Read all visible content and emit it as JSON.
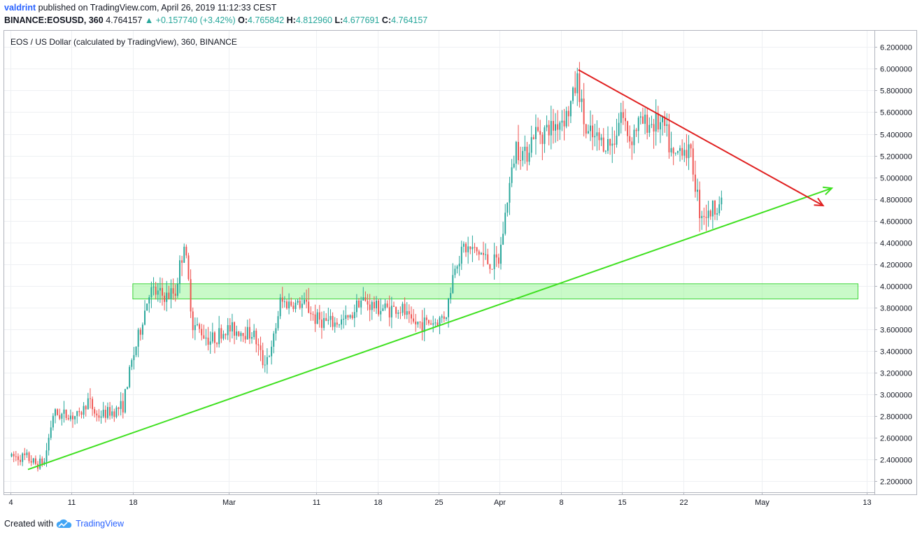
{
  "header": {
    "author": "valdrint",
    "published_text": "published on TradingView.com, April 26, 2019 11:12:33 CEST",
    "symbol_line": "BINANCE:EOSUSD, 360",
    "last_price": "4.764157",
    "change_arrow": "▲",
    "change": "+0.157740 (+3.42%)",
    "o_label": "O:",
    "o_value": "4.765842",
    "h_label": "H:",
    "h_value": "4.812960",
    "l_label": "L:",
    "l_value": "4.677691",
    "c_label": "C:",
    "c_value": "4.764157"
  },
  "footer": {
    "created_with": "Created with",
    "brand": "TradingView"
  },
  "colors": {
    "up": "#26a69a",
    "down": "#ef5350",
    "support_line": "#3fe020",
    "resistance_line": "#e02020",
    "zone_fill": "#9cf59a",
    "zone_stroke": "#3fd63a",
    "grid": "#eef0f3"
  },
  "chart_data": {
    "type": "candlestick",
    "legend": "EOS / US Dollar (calculated by TradingView), 360, BINANCE",
    "ylim": [
      2.1,
      6.35
    ],
    "y_ticks": [
      "2.200000",
      "2.400000",
      "2.600000",
      "2.800000",
      "3.000000",
      "3.200000",
      "3.400000",
      "3.600000",
      "3.800000",
      "4.000000",
      "4.200000",
      "4.400000",
      "4.600000",
      "4.800000",
      "5.000000",
      "5.200000",
      "5.400000",
      "5.600000",
      "5.800000",
      "6.000000",
      "6.200000"
    ],
    "x_range": [
      "2019-02-04",
      "2019-05-13"
    ],
    "x_ticks": [
      {
        "date": "2019-02-04",
        "label": "4"
      },
      {
        "date": "2019-02-11",
        "label": "11"
      },
      {
        "date": "2019-02-18",
        "label": "18"
      },
      {
        "date": "2019-03-01",
        "label": "Mar"
      },
      {
        "date": "2019-03-11",
        "label": "11"
      },
      {
        "date": "2019-03-18",
        "label": "18"
      },
      {
        "date": "2019-03-25",
        "label": "25"
      },
      {
        "date": "2019-04-01",
        "label": "Apr"
      },
      {
        "date": "2019-04-08",
        "label": "8"
      },
      {
        "date": "2019-04-15",
        "label": "15"
      },
      {
        "date": "2019-04-22",
        "label": "22"
      },
      {
        "date": "2019-05-01",
        "label": "May"
      },
      {
        "date": "2019-05-13",
        "label": "13"
      }
    ],
    "price_path": [
      [
        "2019-02-04",
        2.43
      ],
      [
        "2019-02-06",
        2.42
      ],
      [
        "2019-02-07",
        2.36
      ],
      [
        "2019-02-08",
        2.38
      ],
      [
        "2019-02-09",
        2.82
      ],
      [
        "2019-02-12",
        2.8
      ],
      [
        "2019-02-13",
        2.95
      ],
      [
        "2019-02-14",
        2.8
      ],
      [
        "2019-02-16",
        2.85
      ],
      [
        "2019-02-17",
        2.9
      ],
      [
        "2019-02-18",
        3.3
      ],
      [
        "2019-02-19",
        3.6
      ],
      [
        "2019-02-20",
        3.95
      ],
      [
        "2019-02-22",
        3.9
      ],
      [
        "2019-02-23",
        3.95
      ],
      [
        "2019-02-24",
        4.4
      ],
      [
        "2019-02-25",
        3.65
      ],
      [
        "2019-02-27",
        3.5
      ],
      [
        "2019-03-01",
        3.6
      ],
      [
        "2019-03-03",
        3.58
      ],
      [
        "2019-03-04",
        3.55
      ],
      [
        "2019-03-05",
        3.3
      ],
      [
        "2019-03-06",
        3.4
      ],
      [
        "2019-03-07",
        3.85
      ],
      [
        "2019-03-10",
        3.82
      ],
      [
        "2019-03-11",
        3.7
      ],
      [
        "2019-03-13",
        3.65
      ],
      [
        "2019-03-15",
        3.7
      ],
      [
        "2019-03-16",
        3.88
      ],
      [
        "2019-03-18",
        3.8
      ],
      [
        "2019-03-21",
        3.78
      ],
      [
        "2019-03-22",
        3.65
      ],
      [
        "2019-03-25",
        3.67
      ],
      [
        "2019-03-26",
        3.75
      ],
      [
        "2019-03-27",
        4.2
      ],
      [
        "2019-03-28",
        4.35
      ],
      [
        "2019-03-30",
        4.3
      ],
      [
        "2019-03-31",
        4.2
      ],
      [
        "2019-04-01",
        4.22
      ],
      [
        "2019-04-02",
        4.8
      ],
      [
        "2019-04-03",
        5.3
      ],
      [
        "2019-04-04",
        5.2
      ],
      [
        "2019-04-05",
        5.4
      ],
      [
        "2019-04-07",
        5.45
      ],
      [
        "2019-04-09",
        5.6
      ],
      [
        "2019-04-10",
        5.9
      ],
      [
        "2019-04-11",
        5.4
      ],
      [
        "2019-04-12",
        5.35
      ],
      [
        "2019-04-14",
        5.3
      ],
      [
        "2019-04-15",
        5.6
      ],
      [
        "2019-04-16",
        5.35
      ],
      [
        "2019-04-17",
        5.5
      ],
      [
        "2019-04-19",
        5.5
      ],
      [
        "2019-04-20",
        5.45
      ],
      [
        "2019-04-21",
        5.15
      ],
      [
        "2019-04-22",
        5.3
      ],
      [
        "2019-04-23",
        5.2
      ],
      [
        "2019-04-24",
        4.7
      ],
      [
        "2019-04-25",
        4.65
      ],
      [
        "2019-04-26",
        4.76
      ]
    ],
    "support_trendline": {
      "from": [
        "2019-02-06",
        2.31
      ],
      "to": [
        "2019-05-09",
        4.9
      ]
    },
    "resistance_trendline": {
      "from": [
        "2019-04-10",
        5.99
      ],
      "to": [
        "2019-05-08",
        4.74
      ]
    },
    "horizontal_zone": {
      "from": "2019-02-18",
      "to": "2019-05-12",
      "low": 3.88,
      "high": 4.02
    }
  }
}
